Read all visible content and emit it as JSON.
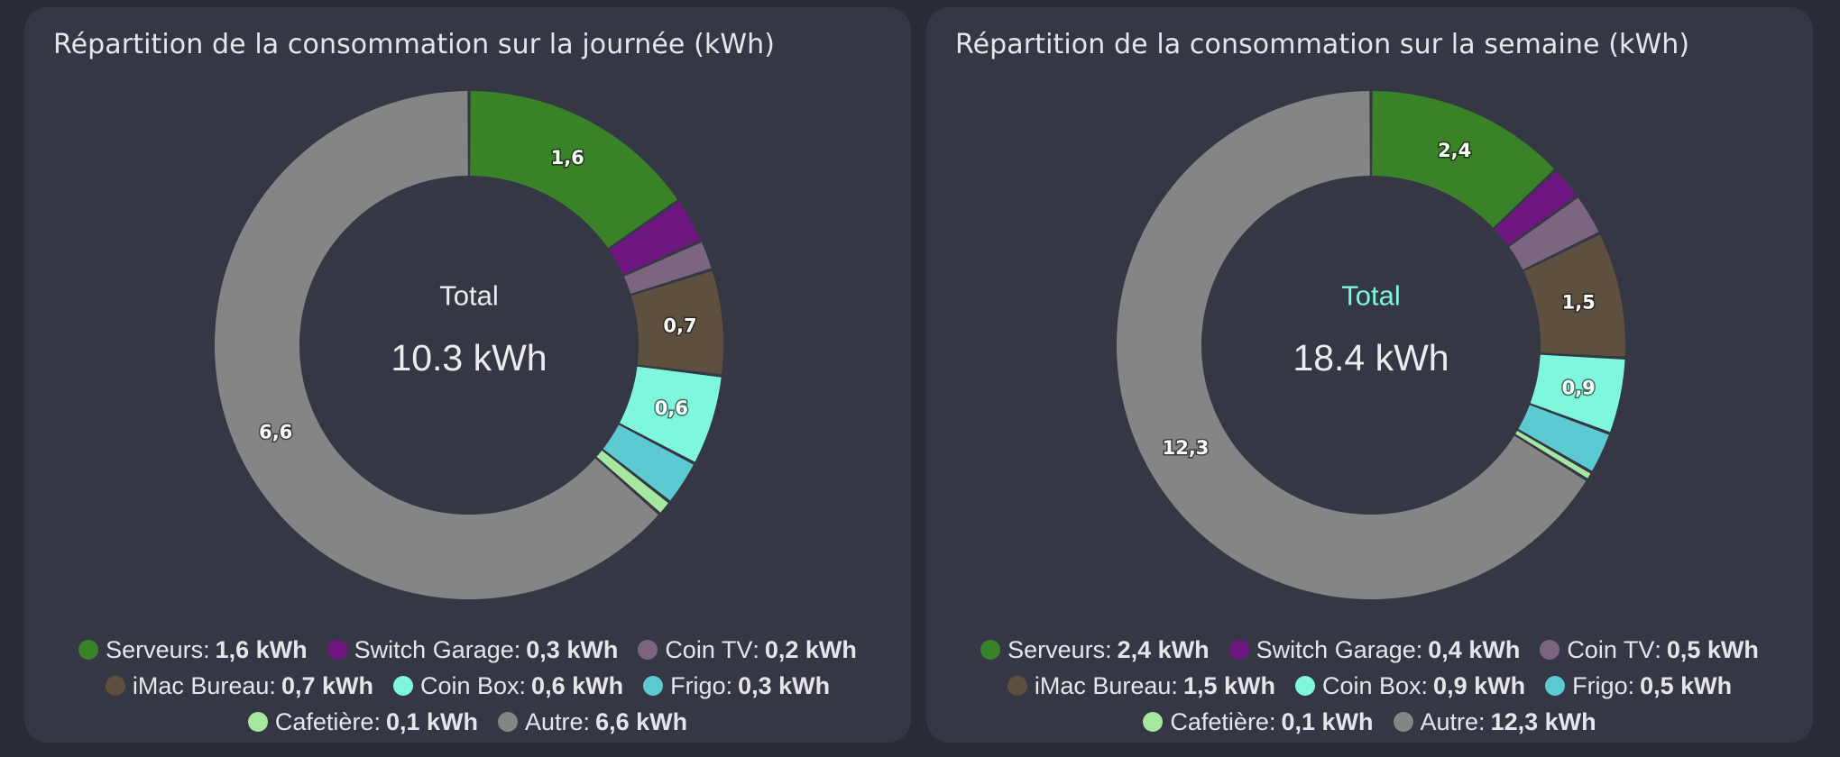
{
  "chart_data": [
    {
      "type": "pie",
      "title": "Répartition de la consommation sur la journée (kWh)",
      "center": {
        "label": "Total",
        "value": "10.3 kWh",
        "label_color": "#ececf0"
      },
      "unit": "kWh",
      "series": [
        {
          "name": "Serveurs",
          "value": 1.6,
          "label": "1,6",
          "legend_value": "1,6 kWh",
          "color": "#3a8228"
        },
        {
          "name": "Switch Garage",
          "value": 0.3,
          "label": "",
          "legend_value": "0,3 kWh",
          "color": "#6e1680"
        },
        {
          "name": "Coin TV",
          "value": 0.2,
          "label": "",
          "legend_value": "0,2 kWh",
          "color": "#7b6580"
        },
        {
          "name": "iMac Bureau",
          "value": 0.7,
          "label": "0,7",
          "legend_value": "0,7 kWh",
          "color": "#5e503f"
        },
        {
          "name": "Coin Box",
          "value": 0.6,
          "label": "0,6",
          "legend_value": "0,6 kWh",
          "color": "#7ef7dc"
        },
        {
          "name": "Frigo",
          "value": 0.3,
          "label": "",
          "legend_value": "0,3 kWh",
          "color": "#5ccbd1"
        },
        {
          "name": "Cafetière",
          "value": 0.1,
          "label": "",
          "legend_value": "0,1 kWh",
          "color": "#a6e8a0"
        },
        {
          "name": "Autre",
          "value": 6.6,
          "label": "6,6",
          "legend_value": "6,6 kWh",
          "color": "#858585"
        }
      ]
    },
    {
      "type": "pie",
      "title": "Répartition de la consommation sur la semaine (kWh)",
      "center": {
        "label": "Total",
        "value": "18.4 kWh",
        "label_color": "#7ef7dc"
      },
      "unit": "kWh",
      "series": [
        {
          "name": "Serveurs",
          "value": 2.4,
          "label": "2,4",
          "legend_value": "2,4 kWh",
          "color": "#3a8228"
        },
        {
          "name": "Switch Garage",
          "value": 0.4,
          "label": "",
          "legend_value": "0,4 kWh",
          "color": "#6e1680"
        },
        {
          "name": "Coin TV",
          "value": 0.5,
          "label": "",
          "legend_value": "0,5 kWh",
          "color": "#7b6580"
        },
        {
          "name": "iMac Bureau",
          "value": 1.5,
          "label": "1,5",
          "legend_value": "1,5 kWh",
          "color": "#5e503f"
        },
        {
          "name": "Coin Box",
          "value": 0.9,
          "label": "0,9",
          "legend_value": "0,9 kWh",
          "color": "#7ef7dc"
        },
        {
          "name": "Frigo",
          "value": 0.5,
          "label": "",
          "legend_value": "0,5 kWh",
          "color": "#5ccbd1"
        },
        {
          "name": "Cafetière",
          "value": 0.1,
          "label": "",
          "legend_value": "0,1 kWh",
          "color": "#a6e8a0"
        },
        {
          "name": "Autre",
          "value": 12.3,
          "label": "12,3",
          "legend_value": "12,3 kWh",
          "color": "#858585"
        }
      ]
    }
  ]
}
